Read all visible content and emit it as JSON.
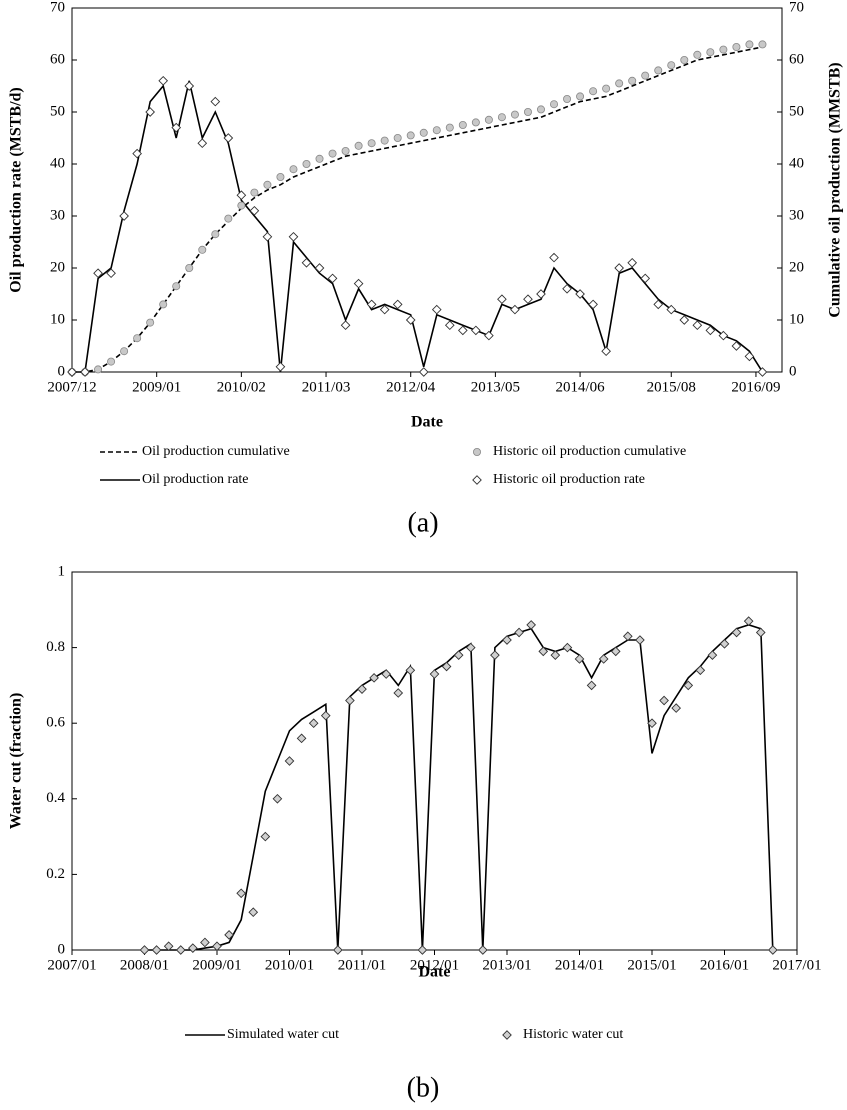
{
  "chart_data": [
    {
      "type": "line",
      "caption": "(a)",
      "xlabel": "Date",
      "ylabel": "Oil production rate (MSTB/d)",
      "y2label": "Cumulative oil production (MMSTB)",
      "xlim": [
        "2007/12",
        "2017/01"
      ],
      "xticks": [
        "2007/12",
        "2009/01",
        "2010/02",
        "2011/03",
        "2012/04",
        "2013/05",
        "2014/06",
        "2015/08",
        "2016/09"
      ],
      "ylim": [
        0,
        70
      ],
      "yticks": [
        0,
        10,
        20,
        30,
        40,
        50,
        60,
        70
      ],
      "y2lim": [
        0,
        70
      ],
      "y2ticks": [
        0,
        10,
        20,
        30,
        40,
        50,
        60,
        70
      ],
      "x": [
        "2007/12",
        "2008/02",
        "2008/04",
        "2008/06",
        "2008/08",
        "2008/10",
        "2008/12",
        "2009/02",
        "2009/04",
        "2009/06",
        "2009/08",
        "2009/10",
        "2009/12",
        "2010/02",
        "2010/04",
        "2010/06",
        "2010/08",
        "2010/10",
        "2010/12",
        "2011/02",
        "2011/04",
        "2011/06",
        "2011/08",
        "2011/10",
        "2011/12",
        "2012/02",
        "2012/04",
        "2012/06",
        "2012/08",
        "2012/10",
        "2012/12",
        "2013/02",
        "2013/04",
        "2013/06",
        "2013/08",
        "2013/10",
        "2013/12",
        "2014/02",
        "2014/04",
        "2014/06",
        "2014/08",
        "2014/10",
        "2014/12",
        "2015/02",
        "2015/04",
        "2015/06",
        "2015/08",
        "2015/10",
        "2015/12",
        "2016/02",
        "2016/04",
        "2016/06",
        "2016/08",
        "2016/10"
      ],
      "series": [
        {
          "name": "Oil production cumulative",
          "axis": "y2",
          "color": "#000000",
          "line": "dashed",
          "values": [
            0,
            0,
            0.5,
            2,
            4,
            6.5,
            9.5,
            13,
            16.5,
            20,
            23.5,
            26.5,
            29,
            31.5,
            33.5,
            35,
            36,
            37.5,
            38.5,
            39.5,
            40.5,
            41.5,
            42,
            42.5,
            43,
            43.5,
            44,
            44.5,
            45,
            45.5,
            46,
            46.5,
            47,
            47.5,
            48,
            48.5,
            49,
            50,
            51,
            52,
            52.5,
            53,
            54,
            55,
            56,
            57,
            58,
            59,
            60,
            60.5,
            61,
            61.5,
            62,
            62.5
          ]
        },
        {
          "name": "Historic oil production cumulative",
          "axis": "y2",
          "color": "#c8c8c8",
          "marker": "circle",
          "values": [
            0,
            0,
            0.5,
            2,
            4,
            6.5,
            9.5,
            13,
            16.5,
            20,
            23.5,
            26.5,
            29.5,
            32,
            34.5,
            36,
            37.5,
            39,
            40,
            41,
            42,
            42.5,
            43.5,
            44,
            44.5,
            45,
            45.5,
            46,
            46.5,
            47,
            47.5,
            48,
            48.5,
            49,
            49.5,
            50,
            50.5,
            51.5,
            52.5,
            53,
            54,
            54.5,
            55.5,
            56,
            57,
            58,
            59,
            60,
            61,
            61.5,
            62,
            62.5,
            63,
            63
          ]
        },
        {
          "name": "Oil production rate",
          "color": "#000000",
          "line": "solid",
          "values": [
            0,
            0,
            18,
            20,
            31,
            40,
            52,
            55,
            45,
            56,
            45,
            50,
            44,
            33,
            30,
            27,
            0,
            25,
            22,
            19,
            17,
            10,
            16,
            12,
            13,
            12,
            11,
            1,
            11,
            10,
            9,
            8,
            7,
            13,
            12,
            13,
            14,
            20,
            17,
            15,
            12,
            4,
            19,
            20,
            17,
            14,
            12,
            11,
            10,
            9,
            7,
            6,
            4,
            0
          ]
        },
        {
          "name": "Historic oil production rate",
          "color": "#ffffff",
          "marker": "diamond",
          "values": [
            0,
            0,
            19,
            19,
            30,
            42,
            50,
            56,
            47,
            55,
            44,
            52,
            45,
            34,
            31,
            26,
            1,
            26,
            21,
            20,
            18,
            9,
            17,
            13,
            12,
            13,
            10,
            0,
            12,
            9,
            8,
            8,
            7,
            14,
            12,
            14,
            15,
            22,
            16,
            15,
            13,
            4,
            20,
            21,
            18,
            13,
            12,
            10,
            9,
            8,
            7,
            5,
            3,
            0
          ]
        }
      ]
    },
    {
      "type": "line",
      "caption": "(b)",
      "xlabel": "Date",
      "ylabel": "Water cut (fraction)",
      "xlim": [
        "2007/01",
        "2017/01"
      ],
      "xticks": [
        "2007/01",
        "2008/01",
        "2009/01",
        "2010/01",
        "2011/01",
        "2012/01",
        "2013/01",
        "2014/01",
        "2015/01",
        "2016/01",
        "2017/01"
      ],
      "ylim": [
        0,
        1
      ],
      "yticks": [
        0,
        0.2,
        0.4,
        0.6,
        0.8,
        1
      ],
      "x": [
        "2008/01",
        "2008/03",
        "2008/05",
        "2008/07",
        "2008/09",
        "2008/11",
        "2009/01",
        "2009/03",
        "2009/05",
        "2009/07",
        "2009/09",
        "2009/11",
        "2010/01",
        "2010/03",
        "2010/05",
        "2010/07",
        "2010/09",
        "2010/11",
        "2011/01",
        "2011/03",
        "2011/05",
        "2011/07",
        "2011/09",
        "2011/11",
        "2012/01",
        "2012/03",
        "2012/05",
        "2012/07",
        "2012/09",
        "2012/11",
        "2013/01",
        "2013/03",
        "2013/05",
        "2013/07",
        "2013/09",
        "2013/11",
        "2014/01",
        "2014/03",
        "2014/05",
        "2014/07",
        "2014/09",
        "2014/11",
        "2015/01",
        "2015/03",
        "2015/05",
        "2015/07",
        "2015/09",
        "2015/11",
        "2016/01",
        "2016/03",
        "2016/05",
        "2016/07",
        "2016/09"
      ],
      "series": [
        {
          "name": "Simulated water cut",
          "color": "#000000",
          "line": "solid",
          "values": [
            0,
            0,
            0,
            0,
            0,
            0.005,
            0.01,
            0.02,
            0.08,
            0.25,
            0.42,
            0.5,
            0.58,
            0.61,
            0.63,
            0.65,
            0,
            0.67,
            0.7,
            0.72,
            0.74,
            0.7,
            0.75,
            0,
            0.74,
            0.76,
            0.79,
            0.81,
            0,
            0.8,
            0.83,
            0.84,
            0.85,
            0.8,
            0.79,
            0.8,
            0.78,
            0.72,
            0.78,
            0.8,
            0.82,
            0.82,
            0.52,
            0.62,
            0.67,
            0.72,
            0.75,
            0.79,
            0.82,
            0.85,
            0.86,
            0.85,
            0
          ]
        },
        {
          "name": "Historic water cut",
          "color": "#d0d0d0",
          "marker": "diamond",
          "values": [
            0,
            0,
            0.01,
            0,
            0.005,
            0.02,
            0.01,
            0.04,
            0.15,
            0.1,
            0.3,
            0.4,
            0.5,
            0.56,
            0.6,
            0.62,
            0,
            0.66,
            0.69,
            0.72,
            0.73,
            0.68,
            0.74,
            0,
            0.73,
            0.75,
            0.78,
            0.8,
            0,
            0.78,
            0.82,
            0.84,
            0.86,
            0.79,
            0.78,
            0.8,
            0.77,
            0.7,
            0.77,
            0.79,
            0.83,
            0.82,
            0.6,
            0.66,
            0.64,
            0.7,
            0.74,
            0.78,
            0.81,
            0.84,
            0.87,
            0.84,
            0
          ]
        }
      ]
    }
  ]
}
